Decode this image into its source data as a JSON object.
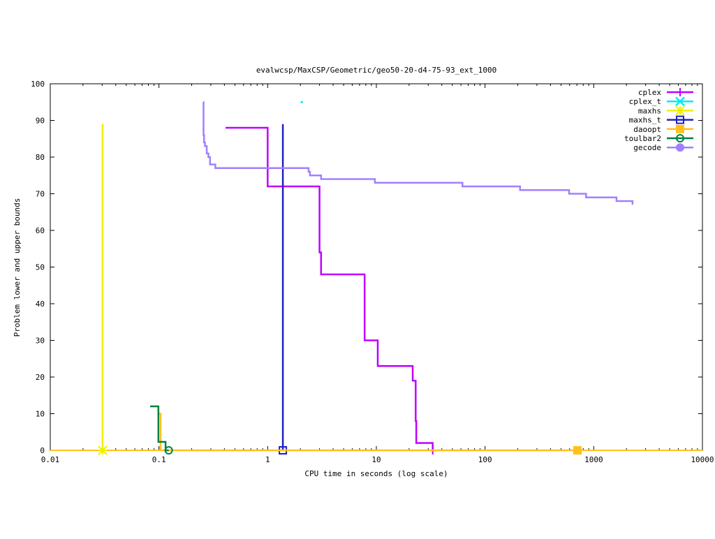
{
  "chart_data": {
    "type": "line",
    "title": "evalwcsp/MaxCSP/Geometric/geo50-20-d4-75-93_ext_1000",
    "xlabel": "CPU time in seconds (log scale)",
    "ylabel": "Problem lower and upper bounds",
    "xscale": "log",
    "xlim": [
      0.01,
      10000
    ],
    "ylim": [
      0,
      100
    ],
    "xticks": [
      "0.01",
      "0.1",
      "1",
      "10",
      "100",
      "1000",
      "10000"
    ],
    "yticks": [
      "0",
      "10",
      "20",
      "30",
      "40",
      "50",
      "60",
      "70",
      "80",
      "90",
      "100"
    ],
    "legend_position": "top-right",
    "grid": false,
    "series": [
      {
        "name": "cplex",
        "color": "#c000ff",
        "marker": "plus",
        "points": [
          [
            0.41,
            88
          ],
          [
            1.0,
            72
          ],
          [
            3.0,
            54
          ],
          [
            3.1,
            48
          ],
          [
            7.8,
            30
          ],
          [
            10.3,
            23
          ],
          [
            21.6,
            19
          ],
          [
            23,
            8
          ],
          [
            23.3,
            2
          ],
          [
            33,
            0
          ]
        ]
      },
      {
        "name": "cplex_t",
        "color": "#00eeee",
        "marker": "x",
        "points": [
          [
            2.06,
            95
          ]
        ]
      },
      {
        "name": "maxhs",
        "color": "#eeee00",
        "marker": "star",
        "points": [
          [
            0.0303,
            89
          ],
          [
            0.0303,
            0
          ]
        ]
      },
      {
        "name": "maxhs_t",
        "color": "#2020c0",
        "marker": "square",
        "points": [
          [
            1.38,
            89
          ],
          [
            1.38,
            0
          ]
        ]
      },
      {
        "name": "daoopt",
        "color": "#ffc020",
        "marker": "filled-square",
        "points": [
          [
            0.1,
            10
          ],
          [
            0.1035,
            0
          ],
          [
            708,
            0
          ]
        ]
      },
      {
        "name": "toulbar2",
        "color": "#008040",
        "marker": "circle",
        "points": [
          [
            0.083,
            12
          ],
          [
            0.0988,
            2.3
          ],
          [
            0.115,
            0
          ],
          [
            0.123,
            0
          ]
        ]
      },
      {
        "name": "gecode",
        "color": "#a080ff",
        "marker": "filled-circle",
        "points": [
          [
            0.255,
            95
          ],
          [
            0.257,
            86
          ],
          [
            0.26,
            84
          ],
          [
            0.265,
            83
          ],
          [
            0.275,
            81
          ],
          [
            0.285,
            80
          ],
          [
            0.295,
            78
          ],
          [
            0.33,
            77
          ],
          [
            2.38,
            76
          ],
          [
            2.45,
            75
          ],
          [
            3.1,
            74
          ],
          [
            9.7,
            73
          ],
          [
            62,
            72
          ],
          [
            210,
            71
          ],
          [
            593,
            70
          ],
          [
            850,
            69
          ],
          [
            1620,
            68
          ],
          [
            2275,
            67
          ]
        ]
      }
    ]
  }
}
